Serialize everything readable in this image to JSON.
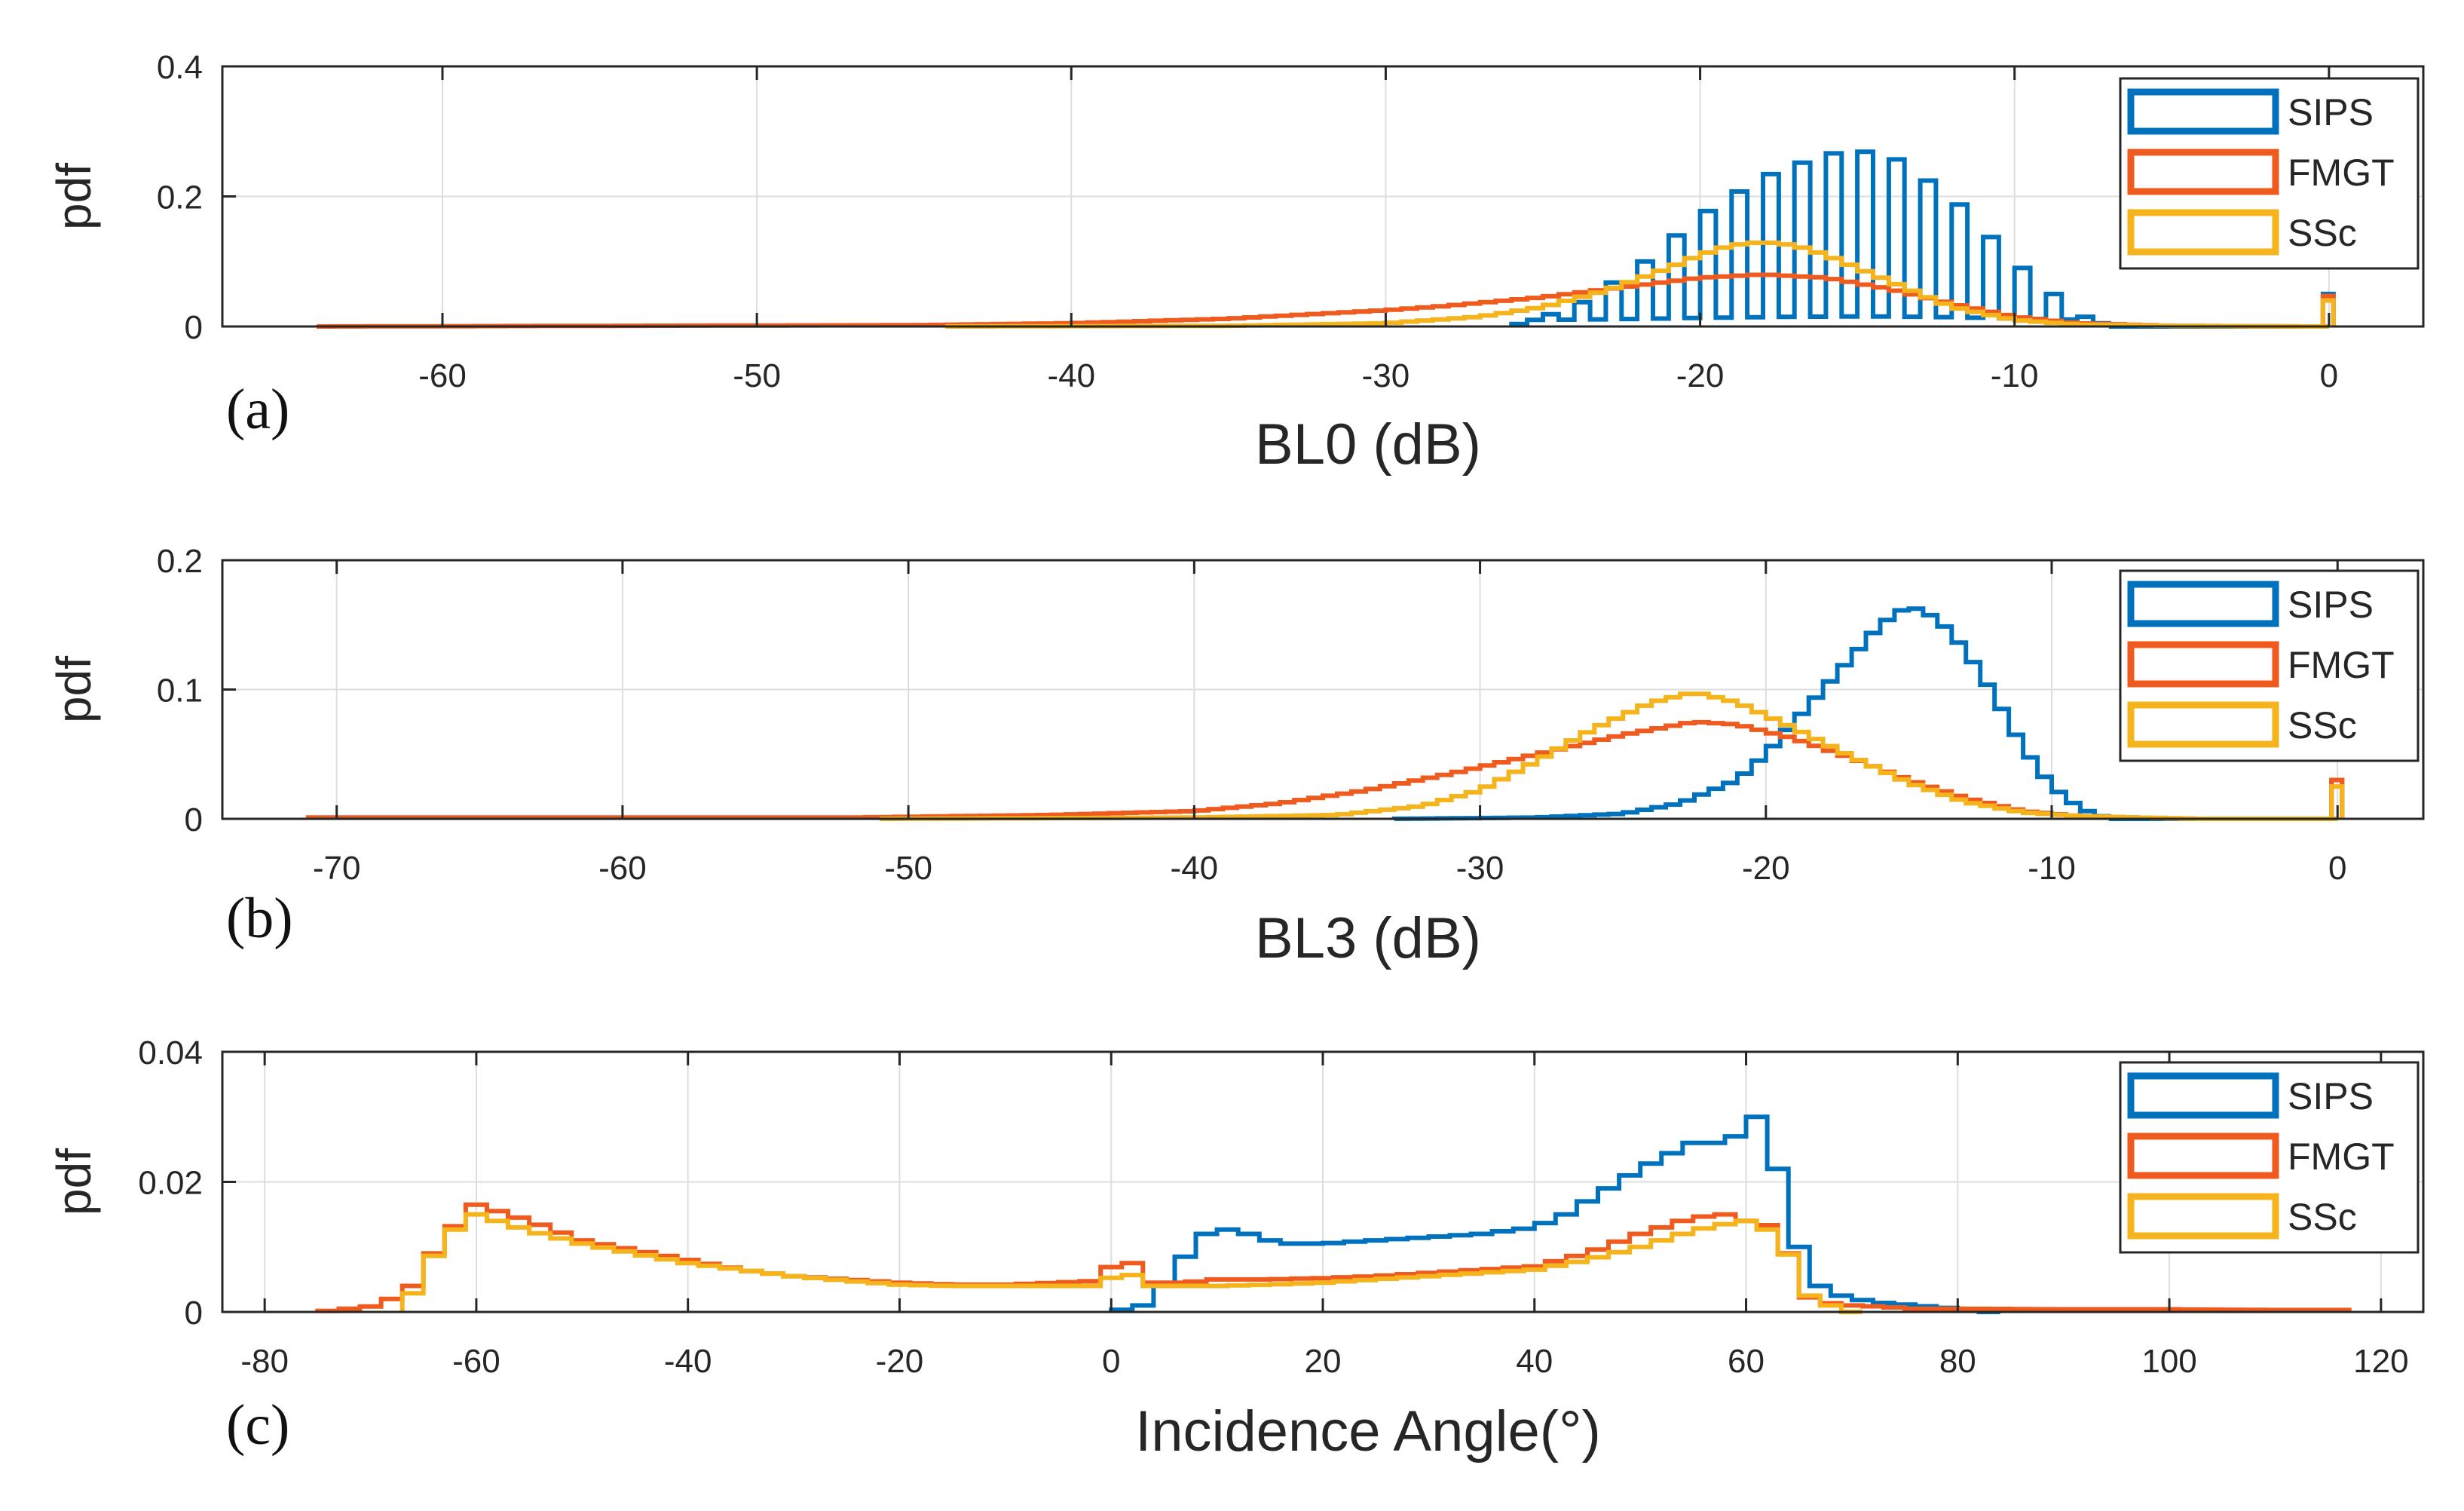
{
  "colors": {
    "SIPS": "#0072BD",
    "FMGT": "#EF5B1E",
    "SSc": "#F5B31C",
    "grid": "#dddddd",
    "axis": "#262626"
  },
  "chart_data": [
    {
      "type": "histogram",
      "panel": "(a)",
      "xlabel": "BL0 (dB)",
      "ylabel": "pdf",
      "xlim": [
        -67,
        3
      ],
      "ylim": [
        0,
        0.4
      ],
      "xticks": [
        -60,
        -50,
        -40,
        -30,
        -20,
        -10,
        0
      ],
      "xtick_labels": [
        "-60",
        "-50",
        "-40",
        "-30",
        "-20",
        "-10",
        "0"
      ],
      "yticks": [
        0,
        0.2,
        0.4
      ],
      "ytick_labels": [
        "0",
        "0.2",
        "0.4"
      ],
      "grid": true,
      "legend_position": "top-right",
      "legend": [
        "SIPS",
        "FMGT",
        "SSc"
      ],
      "series": [
        {
          "name": "SIPS",
          "comb": true,
          "comb_floor": 0.01,
          "x": [
            -26,
            -24,
            -22,
            -20,
            -18,
            -16,
            -15,
            -14,
            -12,
            -10,
            -8,
            -7
          ],
          "y": [
            0,
            0.03,
            0.09,
            0.17,
            0.23,
            0.265,
            0.27,
            0.265,
            0.2,
            0.1,
            0.02,
            0
          ],
          "end_spike": {
            "x": 0,
            "y": 0.05
          }
        },
        {
          "name": "FMGT",
          "x": [
            -64,
            -45,
            -40,
            -35,
            -30,
            -28,
            -25,
            -22,
            -20,
            -18,
            -16,
            -14,
            -12,
            -10,
            -8,
            -5,
            -1
          ],
          "y": [
            0,
            0.002,
            0.005,
            0.012,
            0.025,
            0.032,
            0.045,
            0.063,
            0.075,
            0.08,
            0.075,
            0.058,
            0.035,
            0.015,
            0.005,
            0.001,
            0
          ],
          "end_spike": {
            "x": 0,
            "y": 0.047
          }
        },
        {
          "name": "SSc",
          "x": [
            -44,
            -35,
            -30,
            -27,
            -25,
            -23,
            -21,
            -20,
            -19,
            -18,
            -17,
            -16,
            -14,
            -12,
            -10,
            -8,
            -5,
            -1
          ],
          "y": [
            0,
            0.001,
            0.005,
            0.015,
            0.03,
            0.055,
            0.09,
            0.11,
            0.125,
            0.13,
            0.125,
            0.11,
            0.07,
            0.03,
            0.01,
            0.003,
            0.001,
            0
          ],
          "end_spike": {
            "x": 0,
            "y": 0.04
          }
        }
      ]
    },
    {
      "type": "histogram",
      "panel": "(b)",
      "xlabel": "BL3 (dB)",
      "ylabel": "pdf",
      "xlim": [
        -74,
        3
      ],
      "ylim": [
        0,
        0.2
      ],
      "xticks": [
        -70,
        -60,
        -50,
        -40,
        -30,
        -20,
        -10,
        0
      ],
      "xtick_labels": [
        "-70",
        "-60",
        "-50",
        "-40",
        "-30",
        "-20",
        "-10",
        "0"
      ],
      "yticks": [
        0,
        0.1,
        0.2
      ],
      "ytick_labels": [
        "0",
        "0.1",
        "0.2"
      ],
      "grid": true,
      "legend_position": "top-right",
      "legend": [
        "SIPS",
        "FMGT",
        "SSc"
      ],
      "series": [
        {
          "name": "SIPS",
          "x": [
            -33,
            -28,
            -25,
            -23,
            -21,
            -20,
            -19,
            -18,
            -17,
            -16,
            -15,
            -14,
            -13,
            -12,
            -11,
            -10,
            -9,
            -8
          ],
          "y": [
            0,
            0.001,
            0.004,
            0.012,
            0.03,
            0.05,
            0.075,
            0.1,
            0.125,
            0.15,
            0.165,
            0.155,
            0.13,
            0.095,
            0.055,
            0.025,
            0.008,
            0
          ],
          "end_spike": {
            "x": 0,
            "y": 0.03
          }
        },
        {
          "name": "FMGT",
          "x": [
            -71,
            -60,
            -52,
            -45,
            -40,
            -37,
            -34,
            -31,
            -28,
            -25,
            -22.5,
            -21,
            -19,
            -17,
            -15,
            -13,
            -11,
            -9,
            -7,
            -5
          ],
          "y": [
            0.001,
            0.001,
            0.001,
            0.003,
            0.006,
            0.012,
            0.022,
            0.035,
            0.05,
            0.065,
            0.075,
            0.073,
            0.062,
            0.047,
            0.03,
            0.016,
            0.006,
            0.002,
            0.001,
            0
          ],
          "end_spike": {
            "x": 0,
            "y": 0.03
          }
        },
        {
          "name": "SSc",
          "x": [
            -51,
            -40,
            -35,
            -32,
            -30,
            -28,
            -26,
            -24,
            -22.5,
            -21,
            -19,
            -17,
            -15,
            -13,
            -11,
            -9,
            -7,
            -5
          ],
          "y": [
            0,
            0.001,
            0.003,
            0.01,
            0.022,
            0.045,
            0.07,
            0.09,
            0.098,
            0.09,
            0.07,
            0.048,
            0.028,
            0.013,
            0.005,
            0.002,
            0.001,
            0
          ],
          "end_spike": {
            "x": 0,
            "y": 0.025
          }
        }
      ]
    },
    {
      "type": "histogram",
      "panel": "(c)",
      "xlabel": "Incidence Angle(°)",
      "ylabel": "pdf",
      "xlim": [
        -84,
        124
      ],
      "ylim": [
        0,
        0.04
      ],
      "xticks": [
        -80,
        -60,
        -40,
        -20,
        0,
        20,
        40,
        60,
        80,
        100,
        120
      ],
      "xtick_labels": [
        "-80",
        "-60",
        "-40",
        "-20",
        "0",
        "20",
        "40",
        "60",
        "80",
        "100",
        "120"
      ],
      "yticks": [
        0,
        0.02,
        0.04
      ],
      "ytick_labels": [
        "0",
        "0.02",
        "0.04"
      ],
      "grid": true,
      "legend_position": "top-right",
      "legend": [
        "SIPS",
        "FMGT",
        "SSc"
      ],
      "series": [
        {
          "name": "SIPS",
          "x": [
            0,
            3,
            6,
            8,
            10,
            13,
            16,
            20,
            25,
            30,
            35,
            40,
            43,
            46,
            50,
            55,
            58,
            60,
            61,
            62,
            63,
            64,
            65,
            66,
            67,
            69,
            72,
            76,
            80,
            83
          ],
          "y": [
            0,
            0.001,
            0.006,
            0.011,
            0.013,
            0.012,
            0.0105,
            0.0105,
            0.011,
            0.0115,
            0.012,
            0.013,
            0.015,
            0.018,
            0.022,
            0.026,
            0.026,
            0.028,
            0.03,
            0.028,
            0.022,
            0.015,
            0.01,
            0.006,
            0.004,
            0.0025,
            0.0015,
            0.001,
            0.0005,
            0
          ]
        },
        {
          "name": "FMGT",
          "x": [
            -75,
            -69,
            -66,
            -63,
            -60,
            -55,
            -50,
            -45,
            -40,
            -35,
            -30,
            -25,
            -20,
            -15,
            -10,
            -5,
            -1,
            1,
            4,
            7,
            10,
            15,
            20,
            25,
            30,
            35,
            40,
            45,
            50,
            55,
            58,
            60,
            63,
            64,
            65,
            67,
            70,
            73,
            76,
            80,
            90,
            100,
            110,
            117
          ],
          "y": [
            0,
            0.001,
            0.004,
            0.0115,
            0.0165,
            0.014,
            0.011,
            0.0095,
            0.008,
            0.0065,
            0.0055,
            0.005,
            0.0045,
            0.0042,
            0.0042,
            0.0045,
            0.0048,
            0.009,
            0.0045,
            0.0045,
            0.005,
            0.005,
            0.0052,
            0.0055,
            0.006,
            0.0065,
            0.007,
            0.009,
            0.012,
            0.0145,
            0.015,
            0.014,
            0.013,
            0.009,
            0.003,
            0.0015,
            0.001,
            0.0008,
            0.0005,
            0.0005,
            0.0004,
            0.0004,
            0.0003,
            0.0003
          ]
        },
        {
          "name": "SSc",
          "x": [
            -67,
            -63,
            -60,
            -55,
            -50,
            -45,
            -40,
            -35,
            -30,
            -25,
            -20,
            -15,
            -10,
            -5,
            -1,
            1,
            4,
            7,
            10,
            15,
            20,
            25,
            30,
            35,
            40,
            45,
            50,
            55,
            58,
            60,
            63,
            66,
            68,
            70
          ],
          "y": [
            0,
            0.0115,
            0.015,
            0.0125,
            0.0105,
            0.009,
            0.0075,
            0.0065,
            0.0055,
            0.0048,
            0.0042,
            0.004,
            0.004,
            0.004,
            0.004,
            0.0065,
            0.004,
            0.004,
            0.004,
            0.0042,
            0.0045,
            0.005,
            0.0055,
            0.006,
            0.0065,
            0.008,
            0.01,
            0.0125,
            0.0135,
            0.014,
            0.012,
            0.0025,
            0.001,
            0
          ]
        }
      ]
    }
  ]
}
